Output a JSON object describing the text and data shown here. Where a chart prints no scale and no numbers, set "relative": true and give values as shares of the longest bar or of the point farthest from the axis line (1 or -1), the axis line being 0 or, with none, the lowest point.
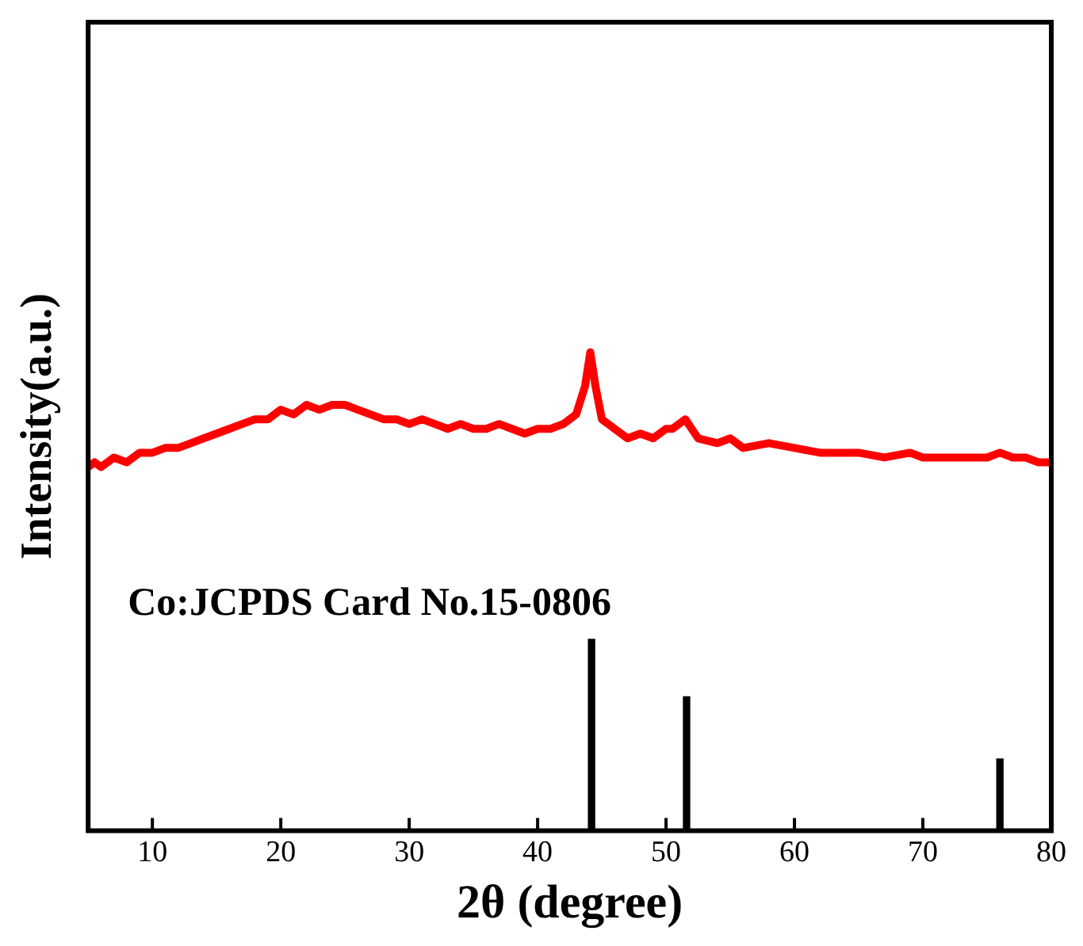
{
  "chart_data": {
    "type": "line",
    "xlabel": "2θ (degree)",
    "ylabel": "Intensity(a.u.)",
    "relative": true,
    "xlim": [
      5,
      80
    ],
    "xticks": [
      10,
      20,
      30,
      40,
      50,
      60,
      70,
      80
    ],
    "grid": false,
    "legend": false,
    "marker": "none",
    "annotations": [
      "Co:JCPDS Card No.15-0806"
    ],
    "series": [
      {
        "color": "#ff0000",
        "x": [
          5,
          5.5,
          6,
          7,
          8,
          9,
          10,
          11,
          12,
          13,
          14,
          15,
          16,
          17,
          18,
          19,
          20,
          21,
          22,
          23,
          24,
          25,
          26,
          27,
          28,
          29,
          30,
          31,
          32,
          33,
          34,
          35,
          36,
          37,
          38,
          39,
          40,
          41,
          42,
          43,
          43.7,
          44.1,
          44.5,
          45,
          46,
          47,
          48,
          49,
          50,
          50.5,
          51,
          51.5,
          52,
          52.5,
          54,
          55,
          56,
          58,
          60,
          62,
          64,
          65,
          67,
          69,
          70,
          72,
          74,
          75,
          76,
          77,
          78,
          79,
          80
        ],
        "values": [
          0.76,
          0.77,
          0.76,
          0.78,
          0.77,
          0.79,
          0.79,
          0.8,
          0.8,
          0.81,
          0.82,
          0.83,
          0.84,
          0.85,
          0.86,
          0.86,
          0.88,
          0.87,
          0.89,
          0.88,
          0.89,
          0.89,
          0.88,
          0.87,
          0.86,
          0.86,
          0.85,
          0.86,
          0.85,
          0.84,
          0.85,
          0.84,
          0.84,
          0.85,
          0.84,
          0.83,
          0.84,
          0.84,
          0.85,
          0.87,
          0.93,
          1,
          0.93,
          0.86,
          0.84,
          0.82,
          0.83,
          0.82,
          0.84,
          0.84,
          0.85,
          0.86,
          0.84,
          0.82,
          0.81,
          0.82,
          0.8,
          0.81,
          0.8,
          0.79,
          0.79,
          0.79,
          0.78,
          0.79,
          0.78,
          0.78,
          0.78,
          0.78,
          0.79,
          0.78,
          0.78,
          0.77,
          0.77
        ]
      },
      {
        "type": "bar",
        "color": "#000000",
        "x": [
          44.2,
          51.6,
          76
        ],
        "values": [
          0.4,
          0.28,
          0.15
        ]
      }
    ]
  }
}
